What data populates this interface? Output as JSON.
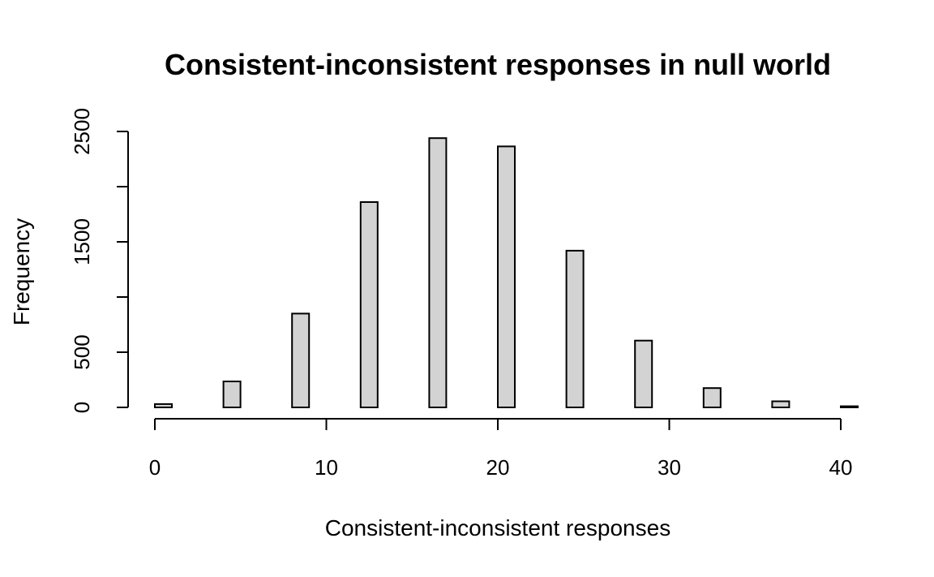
{
  "chart_data": {
    "type": "bar",
    "title": "Consistent-inconsistent responses in null world",
    "xlabel": "Consistent-inconsistent responses",
    "ylabel": "Frequency",
    "xlim": [
      0,
      40
    ],
    "ylim": [
      0,
      2500
    ],
    "x_ticks": [
      0,
      10,
      20,
      30,
      40
    ],
    "y_ticks": [
      0,
      500,
      1000,
      1500,
      2000,
      2500
    ],
    "y_tick_labels": [
      "0",
      "500",
      "",
      "1500",
      "",
      "2500"
    ],
    "x": [
      0,
      4,
      8,
      12,
      16,
      20,
      24,
      28,
      32,
      36,
      40
    ],
    "values": [
      30,
      235,
      850,
      1860,
      2440,
      2365,
      1420,
      605,
      175,
      55,
      10
    ],
    "bar_fill": "#d3d3d3",
    "grid": false
  }
}
